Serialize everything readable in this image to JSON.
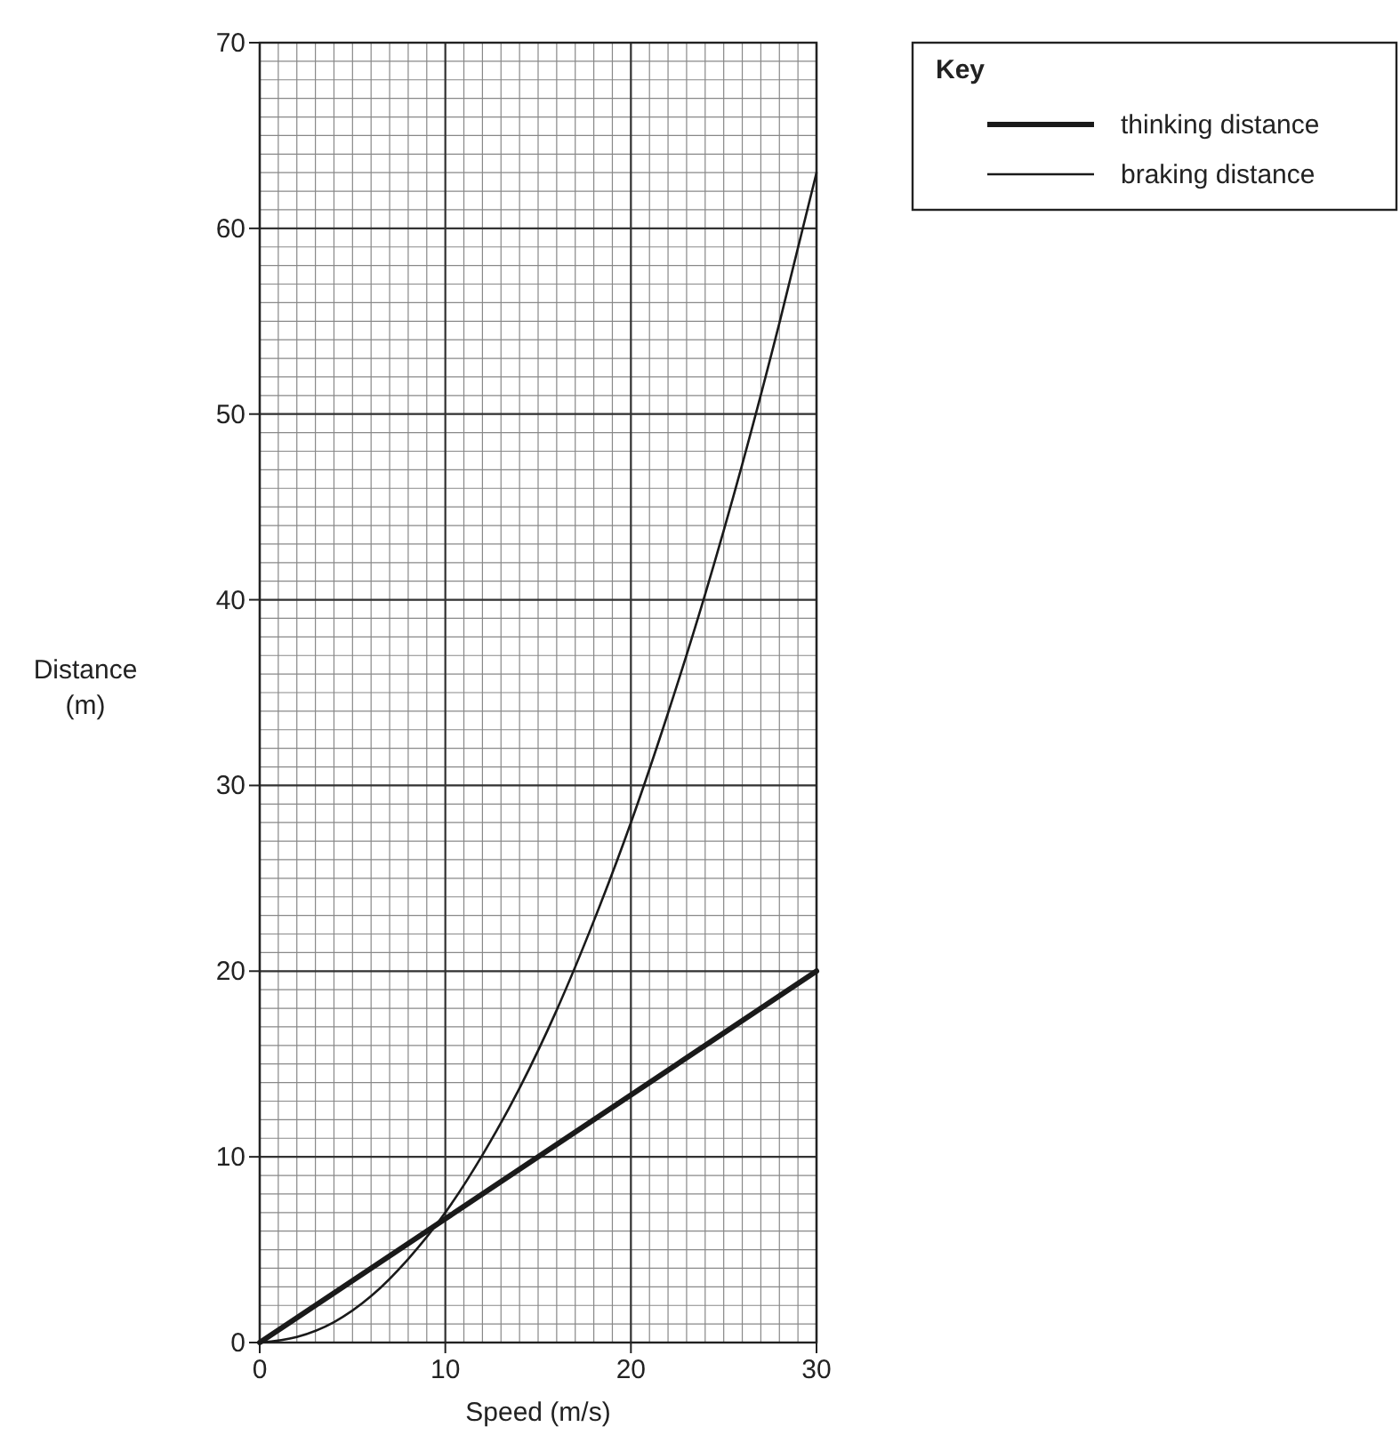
{
  "chart_data": {
    "type": "line",
    "xlabel": "Speed (m/s)",
    "ylabel": "Distance\n(m)",
    "legend_title": "Key",
    "legend": "top right",
    "grid": true,
    "line_style": "solid",
    "xlim": [
      0,
      30
    ],
    "xticks": [
      0,
      10,
      20,
      30
    ],
    "ylim": [
      0,
      70
    ],
    "yticks": [
      0,
      10,
      20,
      30,
      40,
      50,
      60,
      70
    ],
    "series": [
      {
        "name": "thinking distance",
        "color": "#1a1a1a",
        "x": [
          0,
          30
        ],
        "values": [
          0,
          20
        ]
      },
      {
        "name": "braking distance",
        "color": "#1a1a1a",
        "x": [
          0,
          2,
          4,
          6,
          8,
          10,
          12,
          14,
          16,
          18,
          20,
          22,
          24,
          26,
          28,
          30
        ],
        "values": [
          0,
          0.3,
          1.1,
          2.5,
          4.5,
          7,
          10.1,
          13.7,
          17.9,
          22.7,
          28,
          33.9,
          40.3,
          47.3,
          54.9,
          63
        ]
      }
    ]
  }
}
